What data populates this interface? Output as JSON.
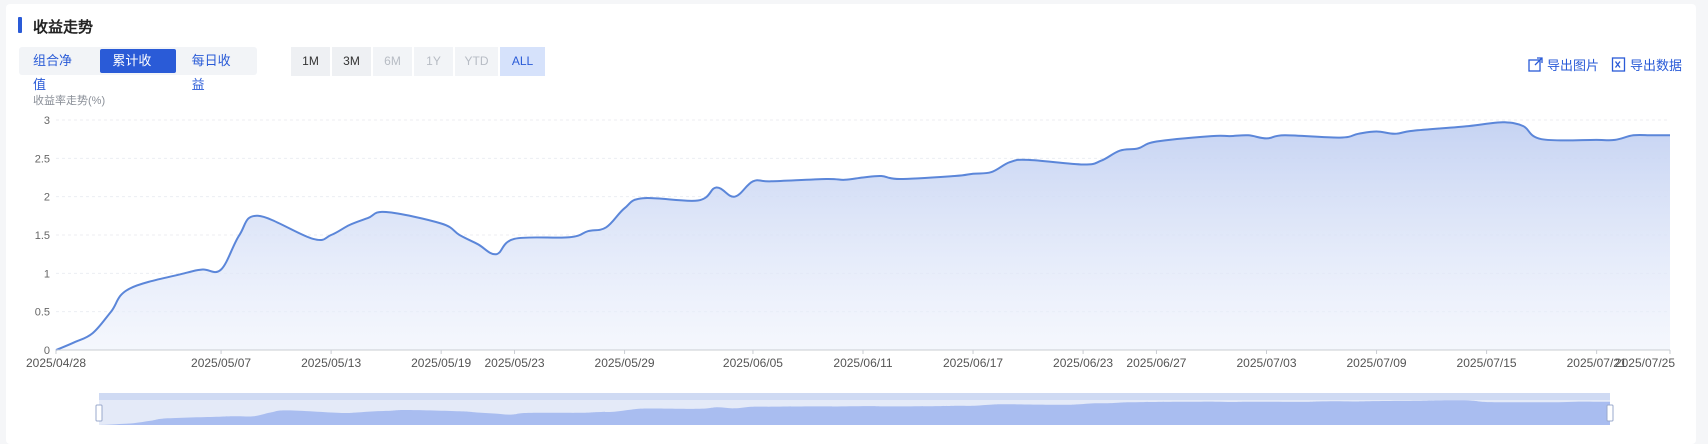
{
  "header": {
    "title": "收益走势"
  },
  "tabs": [
    {
      "label": "组合净值",
      "active": false
    },
    {
      "label": "累计收益",
      "active": true
    },
    {
      "label": "每日收益",
      "active": false
    }
  ],
  "ranges": [
    {
      "label": "1M",
      "state": "normal"
    },
    {
      "label": "3M",
      "state": "normal"
    },
    {
      "label": "6M",
      "state": "disabled"
    },
    {
      "label": "1Y",
      "state": "disabled"
    },
    {
      "label": "YTD",
      "state": "disabled"
    },
    {
      "label": "ALL",
      "state": "active"
    }
  ],
  "tools": {
    "export_image": "导出图片",
    "export_data": "导出数据"
  },
  "colors": {
    "accent": "#2a5bd7",
    "line": "#5b86d9",
    "area": "#c9d6f3"
  },
  "chart_data": {
    "type": "area",
    "ylabel": "收益率走势(%)",
    "ylim": [
      0,
      3
    ],
    "yticks": [
      "0",
      "0.5",
      "1",
      "1.5",
      "2",
      "2.5",
      "3"
    ],
    "xtick_labels": [
      "2025/04/28",
      "2025/05/07",
      "2025/05/13",
      "2025/05/19",
      "2025/05/23",
      "2025/05/29",
      "2025/06/05",
      "2025/06/11",
      "2025/06/17",
      "2025/06/23",
      "2025/06/27",
      "2025/07/03",
      "2025/07/09",
      "2025/07/15",
      "2025/07/21",
      "2025/07/25"
    ],
    "grid": true,
    "series": [
      {
        "x": [
          "2025/04/28",
          "2025/04/29",
          "2025/04/30",
          "2025/05/01",
          "2025/05/02",
          "2025/05/05",
          "2025/05/06",
          "2025/05/07",
          "2025/05/08",
          "2025/05/09",
          "2025/05/12",
          "2025/05/13",
          "2025/05/14",
          "2025/05/15",
          "2025/05/16",
          "2025/05/19",
          "2025/05/20",
          "2025/05/21",
          "2025/05/22",
          "2025/05/23",
          "2025/05/26",
          "2025/05/27",
          "2025/05/28",
          "2025/05/29",
          "2025/05/30",
          "2025/06/02",
          "2025/06/03",
          "2025/06/04",
          "2025/06/05",
          "2025/06/06",
          "2025/06/09",
          "2025/06/10",
          "2025/06/11",
          "2025/06/12",
          "2025/06/13",
          "2025/06/16",
          "2025/06/17",
          "2025/06/18",
          "2025/06/19",
          "2025/06/20",
          "2025/06/23",
          "2025/06/24",
          "2025/06/25",
          "2025/06/26",
          "2025/06/27",
          "2025/06/30",
          "2025/07/01",
          "2025/07/02",
          "2025/07/03",
          "2025/07/04",
          "2025/07/07",
          "2025/07/08",
          "2025/07/09",
          "2025/07/10",
          "2025/07/11",
          "2025/07/14",
          "2025/07/15",
          "2025/07/16",
          "2025/07/17",
          "2025/07/18",
          "2025/07/21",
          "2025/07/22",
          "2025/07/23",
          "2025/07/24",
          "2025/07/25"
        ],
        "y": [
          0.0,
          0.1,
          0.22,
          0.5,
          0.8,
          1.0,
          1.05,
          1.05,
          1.5,
          1.75,
          1.45,
          1.5,
          1.63,
          1.72,
          1.8,
          1.65,
          1.5,
          1.38,
          1.25,
          1.45,
          1.47,
          1.55,
          1.6,
          1.85,
          1.98,
          1.95,
          2.12,
          2.0,
          2.2,
          2.2,
          2.23,
          2.22,
          2.25,
          2.27,
          2.23,
          2.27,
          2.3,
          2.32,
          2.45,
          2.48,
          2.42,
          2.47,
          2.6,
          2.63,
          2.72,
          2.79,
          2.79,
          2.8,
          2.76,
          2.8,
          2.77,
          2.82,
          2.85,
          2.82,
          2.86,
          2.92,
          2.95,
          2.97,
          2.92,
          2.75,
          2.74,
          2.74,
          2.8,
          2.8,
          2.8
        ]
      }
    ]
  }
}
